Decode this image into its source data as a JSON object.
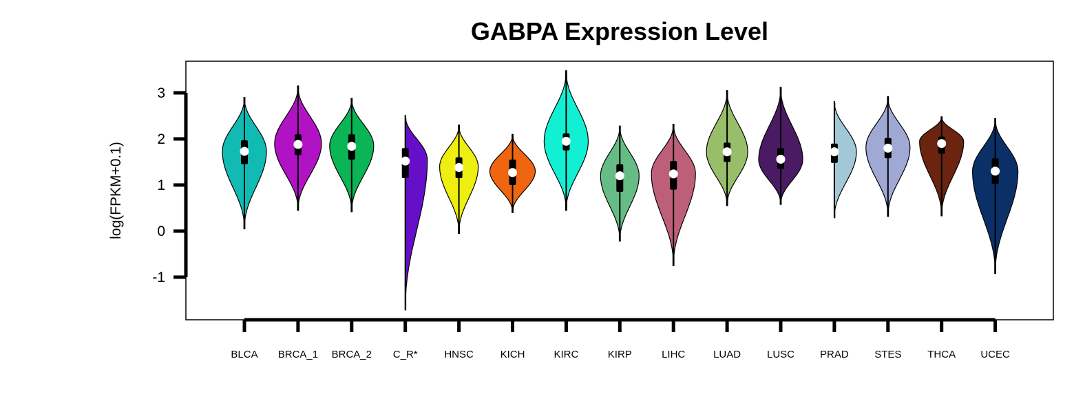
{
  "chart_data": {
    "type": "violin",
    "title": "GABPA Expression Level",
    "xlabel": "",
    "ylabel": "log(FPKM+0.1)",
    "ylim": [
      -1.9,
      3.7
    ],
    "yticks": [
      -1,
      0,
      1,
      2,
      3
    ],
    "legend": "none",
    "grid": false,
    "categories": [
      "BLCA",
      "BRCA_1",
      "BRCA_2",
      "C_R*",
      "HNSC",
      "KICH",
      "KIRC",
      "KIRP",
      "LIHC",
      "LUAD",
      "LUSC",
      "PRAD",
      "STES",
      "THCA",
      "UCEC"
    ],
    "series": [
      {
        "category": "BLCA",
        "color": "#12BAB4",
        "min": 0.05,
        "max": 2.9,
        "q1": 1.45,
        "median": 1.73,
        "q3": 1.97,
        "mode": 1.73,
        "max_half_width": 32
      },
      {
        "category": "BRCA_1",
        "color": "#B012C4",
        "min": 0.45,
        "max": 3.15,
        "q1": 1.65,
        "median": 1.88,
        "q3": 2.1,
        "mode": 1.9,
        "max_half_width": 34
      },
      {
        "category": "BRCA_2",
        "color": "#0BB455",
        "min": 0.42,
        "max": 2.88,
        "q1": 1.55,
        "median": 1.84,
        "q3": 2.1,
        "mode": 1.85,
        "max_half_width": 32
      },
      {
        "category": "C_R*",
        "color": "#6510C8",
        "min": -1.72,
        "max": 2.52,
        "q1": 1.15,
        "median": 1.52,
        "q3": 1.8,
        "mode": 1.55,
        "max_half_width": 32
      },
      {
        "category": "HNSC",
        "color": "#EEEE11",
        "min": -0.05,
        "max": 2.3,
        "q1": 1.15,
        "median": 1.38,
        "q3": 1.6,
        "mode": 1.4,
        "max_half_width": 28
      },
      {
        "category": "KICH",
        "color": "#F06510",
        "min": 0.4,
        "max": 2.1,
        "q1": 1.0,
        "median": 1.27,
        "q3": 1.55,
        "mode": 1.3,
        "max_half_width": 33
      },
      {
        "category": "KIRC",
        "color": "#12F0D4",
        "min": 0.45,
        "max": 3.48,
        "q1": 1.75,
        "median": 1.95,
        "q3": 2.12,
        "mode": 1.95,
        "max_half_width": 32
      },
      {
        "category": "KIRP",
        "color": "#66BC85",
        "min": -0.22,
        "max": 2.28,
        "q1": 0.85,
        "median": 1.2,
        "q3": 1.45,
        "mode": 1.2,
        "max_half_width": 28
      },
      {
        "category": "LIHC",
        "color": "#BE5F7A",
        "min": -0.75,
        "max": 2.32,
        "q1": 0.9,
        "median": 1.24,
        "q3": 1.52,
        "mode": 1.25,
        "max_half_width": 32
      },
      {
        "category": "LUAD",
        "color": "#98BE6A",
        "min": 0.55,
        "max": 3.05,
        "q1": 1.5,
        "median": 1.72,
        "q3": 1.92,
        "mode": 1.72,
        "max_half_width": 30
      },
      {
        "category": "LUSC",
        "color": "#4A1A62",
        "min": 0.58,
        "max": 3.12,
        "q1": 1.35,
        "median": 1.56,
        "q3": 1.8,
        "mode": 1.55,
        "max_half_width": 32
      },
      {
        "category": "PRAD",
        "color": "#A2C8D8",
        "min": 0.28,
        "max": 2.82,
        "q1": 1.48,
        "median": 1.72,
        "q3": 1.9,
        "mode": 1.72,
        "max_half_width": 32
      },
      {
        "category": "STES",
        "color": "#9FA9D4",
        "min": 0.32,
        "max": 2.92,
        "q1": 1.58,
        "median": 1.8,
        "q3": 2.02,
        "mode": 1.82,
        "max_half_width": 32
      },
      {
        "category": "THCA",
        "color": "#6A2410",
        "min": 0.33,
        "max": 2.48,
        "q1": 1.68,
        "median": 1.9,
        "q3": 2.05,
        "mode": 1.95,
        "max_half_width": 32
      },
      {
        "category": "UCEC",
        "color": "#0B3068",
        "min": -0.92,
        "max": 2.44,
        "q1": 1.02,
        "median": 1.3,
        "q3": 1.58,
        "mode": 1.3,
        "max_half_width": 33
      }
    ]
  }
}
